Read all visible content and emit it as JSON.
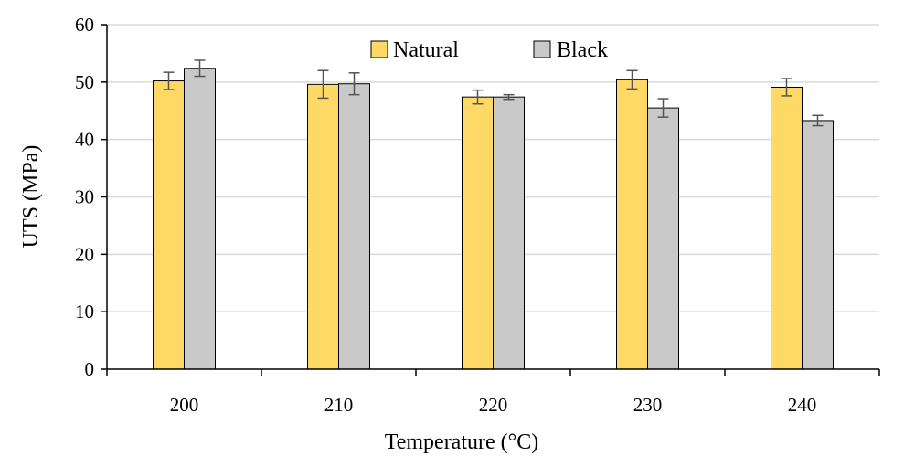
{
  "chart_data": {
    "type": "bar",
    "title": "",
    "xlabel": "Temperature (°C)",
    "ylabel": "UTS (MPa)",
    "categories": [
      "200",
      "210",
      "220",
      "230",
      "240"
    ],
    "ylim": [
      0,
      60
    ],
    "yticks": [
      0,
      10,
      20,
      30,
      40,
      50,
      60
    ],
    "grid": true,
    "legend_position": "top-center",
    "series": [
      {
        "name": "Natural",
        "color": "#FFD966",
        "values": [
          50.2,
          49.6,
          47.4,
          50.4,
          49.1
        ],
        "errors": [
          1.5,
          2.4,
          1.2,
          1.6,
          1.5
        ]
      },
      {
        "name": "Black",
        "color": "#C9C9C9",
        "values": [
          52.4,
          49.7,
          47.4,
          45.5,
          43.3
        ],
        "errors": [
          1.4,
          1.9,
          0.4,
          1.6,
          0.9
        ]
      }
    ]
  }
}
